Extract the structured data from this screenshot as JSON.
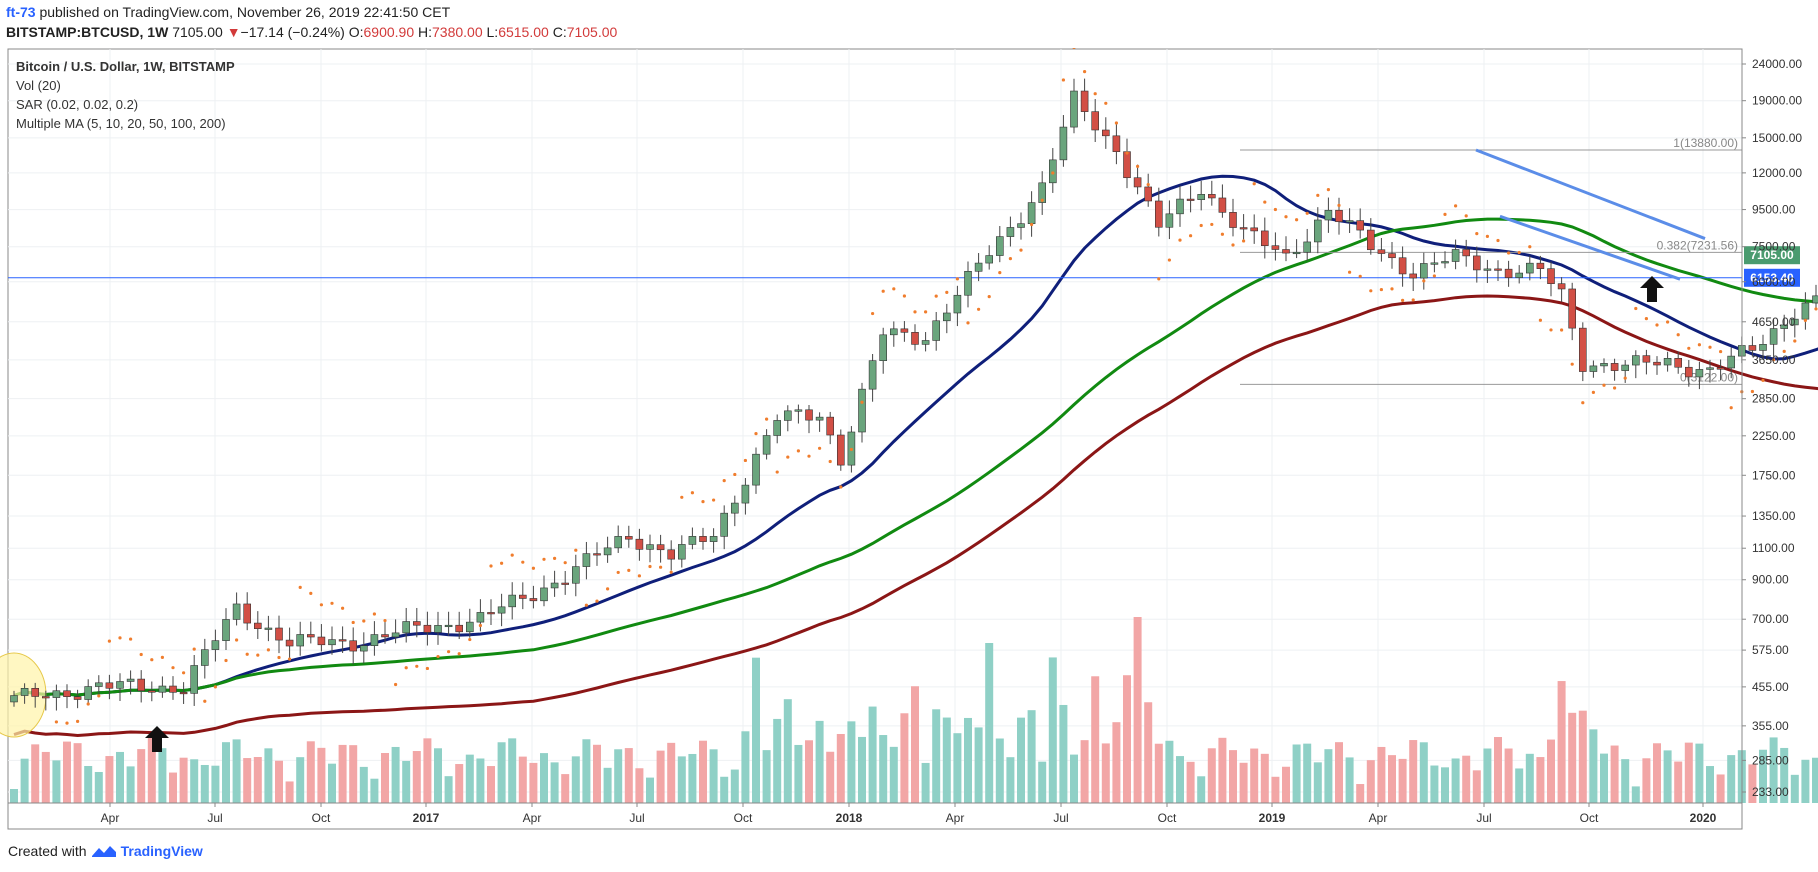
{
  "header": {
    "user": "ft-73",
    "published_text": "published on TradingView.com, November 26, 2019 22:41:50 CET",
    "symbol": "BITSTAMP:BTCUSD, 1W",
    "last_price": "7105.00",
    "change_arrow": "▼",
    "change": "−17.14 (−0.24%)",
    "o_label": "O:",
    "o_value": "6900.90",
    "h_label": "H:",
    "h_value": "7380.00",
    "l_label": "L:",
    "l_value": "6515.00",
    "c_label": "C:",
    "c_value": "7105.00"
  },
  "legend": {
    "title": "Bitcoin / U.S. Dollar, 1W, BITSTAMP",
    "vol": "Vol (20)",
    "sar": "SAR (0.02, 0.02, 0.2)",
    "ma": "Multiple MA (5, 10, 20, 50, 100, 200)"
  },
  "footer": {
    "created_with": "Created with",
    "brand": "TradingView"
  },
  "colors": {
    "up": "#6aa57d",
    "down": "#d24f45",
    "vol_up": "#8fd0c6",
    "vol_down": "#f2a6a6",
    "sar": "#f07d2d",
    "ma_navy": "#0f1f7a",
    "ma_green": "#118a11",
    "ma_maroon": "#8b1616",
    "trend": "#5b8de8",
    "fib": "#999999",
    "badge_green": "#4a9b6f",
    "badge_blue": "#2962ff"
  },
  "chart_data": {
    "type": "candlestick",
    "scale": "log",
    "timeframe": "1W",
    "ylim": [
      160,
      24000
    ],
    "y_ticks": [
      "24000.00",
      "19000.00",
      "15000.00",
      "12000.00",
      "9500.00",
      "7500.00",
      "6000.00",
      "4650.00",
      "3650.00",
      "2850.00",
      "2250.00",
      "1750.00",
      "1350.00",
      "1100.00",
      "900.00",
      "700.00",
      "575.00",
      "455.00",
      "355.00",
      "285.00",
      "233.00"
    ],
    "x_ticks": [
      "Apr",
      "Jul",
      "Oct",
      "2017",
      "Apr",
      "Jul",
      "Oct",
      "2018",
      "Apr",
      "Jul",
      "Oct",
      "2019",
      "Apr",
      "Jul",
      "Oct",
      "2020"
    ],
    "x_ticks_bold": [
      false,
      false,
      false,
      true,
      false,
      false,
      false,
      true,
      false,
      false,
      false,
      true,
      false,
      false,
      false,
      true
    ],
    "anchors": [
      [
        0,
        420
      ],
      [
        8,
        455
      ],
      [
        16,
        455
      ],
      [
        21,
        750
      ],
      [
        26,
        600
      ],
      [
        33,
        610
      ],
      [
        38,
        660
      ],
      [
        44,
        700
      ],
      [
        52,
        920
      ],
      [
        58,
        1200
      ],
      [
        62,
        1050
      ],
      [
        66,
        1200
      ],
      [
        72,
        2500
      ],
      [
        76,
        2600
      ],
      [
        78,
        1950
      ],
      [
        82,
        4300
      ],
      [
        86,
        4250
      ],
      [
        92,
        7200
      ],
      [
        97,
        11000
      ],
      [
        100,
        19000
      ],
      [
        104,
        14000
      ],
      [
        108,
        8500
      ],
      [
        112,
        11000
      ],
      [
        116,
        8200
      ],
      [
        120,
        7000
      ],
      [
        124,
        9500
      ],
      [
        128,
        7500
      ],
      [
        132,
        6400
      ],
      [
        136,
        7000
      ],
      [
        140,
        6500
      ],
      [
        144,
        6400
      ],
      [
        146,
        5500
      ],
      [
        148,
        3600
      ],
      [
        152,
        3500
      ],
      [
        156,
        3600
      ],
      [
        160,
        3400
      ],
      [
        164,
        3900
      ],
      [
        168,
        5000
      ],
      [
        172,
        5600
      ],
      [
        176,
        8200
      ],
      [
        180,
        10800
      ],
      [
        184,
        10500
      ],
      [
        188,
        10000
      ],
      [
        192,
        8200
      ],
      [
        196,
        9000
      ],
      [
        198,
        8600
      ],
      [
        199,
        7105
      ]
    ],
    "annotations": [
      {
        "label": "1(13880.00)",
        "price": 13880
      },
      {
        "label": "0.382(7231.56)",
        "price": 7231.56
      },
      {
        "label": "0(3122.00)",
        "price": 3122
      }
    ],
    "price_badges": [
      {
        "label": "7105.00",
        "price": 7105,
        "color": "#4a9b6f"
      },
      {
        "label": "6153.40",
        "price": 6153.4,
        "color": "#2962ff"
      }
    ],
    "hline_price": 6153.4
  }
}
